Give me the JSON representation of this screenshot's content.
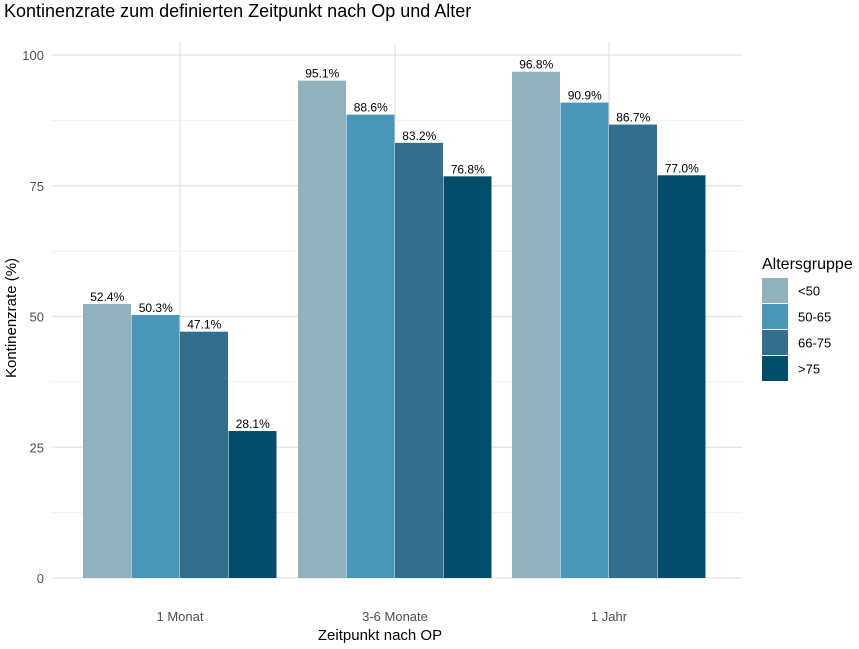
{
  "chart_data": {
    "type": "bar",
    "title": "Kontinenzrate zum definierten Zeitpunkt nach Op und Alter",
    "xlabel": "Zeitpunkt nach OP",
    "ylabel": "Kontinenzrate (%)",
    "ylim": [
      0,
      100
    ],
    "yticks": [
      0,
      25,
      50,
      75,
      100
    ],
    "grid": true,
    "legend_position": "right",
    "legend_title": "Altersgruppe",
    "categories": [
      "1 Monat",
      "3-6 Monate",
      "1 Jahr"
    ],
    "series": [
      {
        "name": "<50",
        "values": [
          52.4,
          95.1,
          96.8
        ],
        "labels": [
          "52.4%",
          "95.1%",
          "96.8%"
        ],
        "color": "#91b2bc"
      },
      {
        "name": "50-65",
        "values": [
          50.3,
          88.6,
          90.9
        ],
        "labels": [
          "50.3%",
          "88.6%",
          "90.9%"
        ],
        "color": "#4a96b8"
      },
      {
        "name": "66-75",
        "values": [
          47.1,
          83.2,
          86.7
        ],
        "labels": [
          "47.1%",
          "83.2%",
          "86.7%"
        ],
        "color": "#336e8e"
      },
      {
        "name": ">75",
        "values": [
          28.1,
          76.8,
          77.0
        ],
        "labels": [
          "28.1%",
          "76.8%",
          "77.0%"
        ],
        "color": "#034d6b"
      }
    ]
  }
}
